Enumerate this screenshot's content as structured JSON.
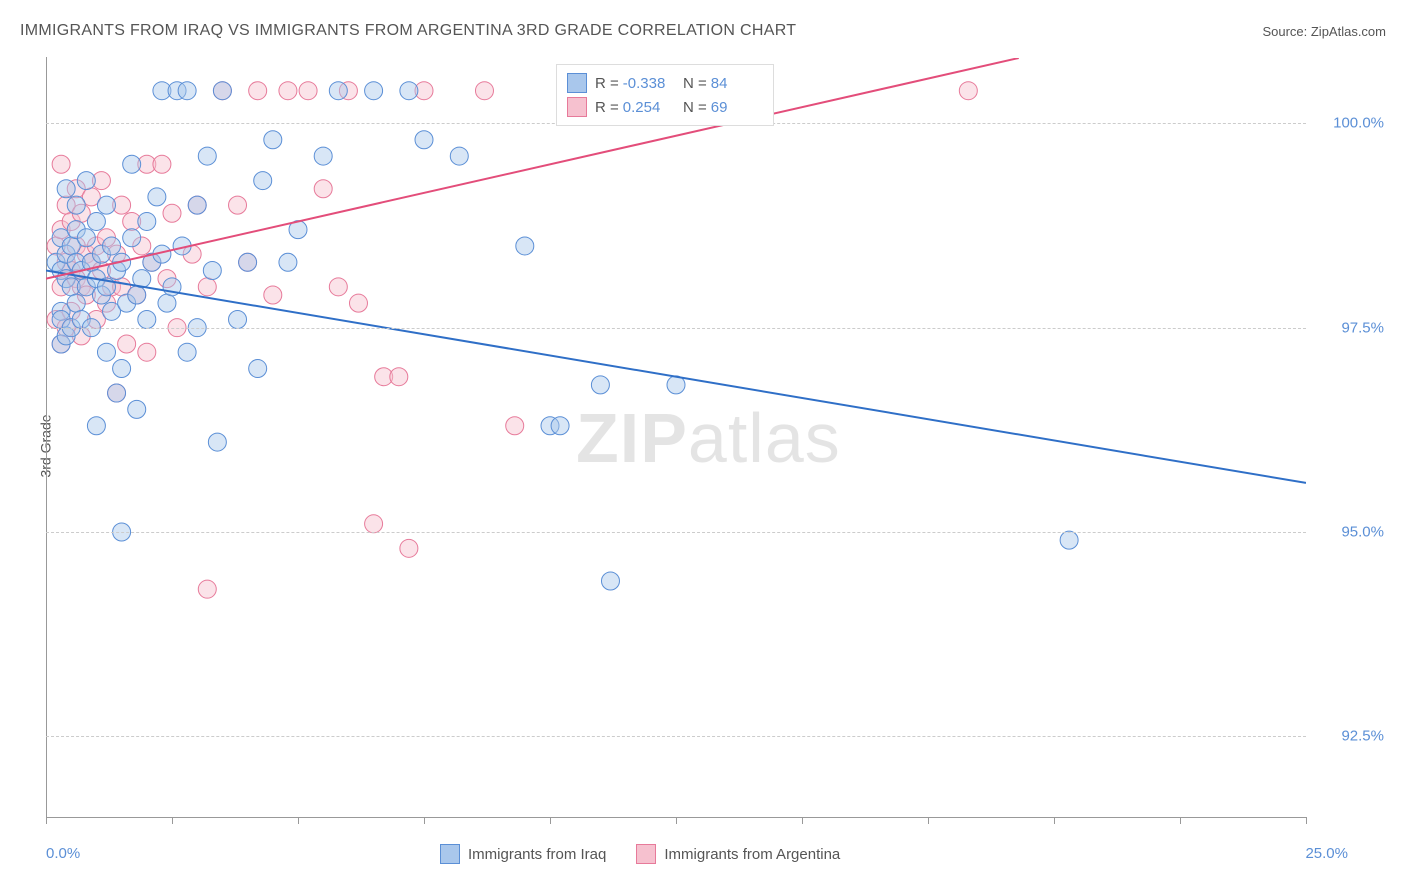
{
  "title": "IMMIGRANTS FROM IRAQ VS IMMIGRANTS FROM ARGENTINA 3RD GRADE CORRELATION CHART",
  "source_label": "Source: ",
  "source_name": "ZipAtlas.com",
  "ylabel": "3rd Grade",
  "watermark_a": "ZIP",
  "watermark_b": "atlas",
  "chart": {
    "type": "scatter",
    "xlim": [
      0,
      25
    ],
    "ylim": [
      91.5,
      100.8
    ],
    "x_ticks": [
      0,
      2.5,
      5,
      7.5,
      10,
      12.5,
      15,
      17.5,
      20,
      22.5,
      25
    ],
    "x_tick_labels": {
      "0": "0.0%",
      "25": "25.0%"
    },
    "y_gridlines": [
      92.5,
      95.0,
      97.5,
      100.0
    ],
    "y_tick_labels": [
      "92.5%",
      "95.0%",
      "97.5%",
      "100.0%"
    ],
    "background_color": "#ffffff",
    "grid_color": "#cccccc",
    "marker_radius": 9,
    "marker_opacity": 0.45,
    "line_width": 2,
    "series": [
      {
        "name": "Immigrants from Iraq",
        "color_fill": "#a9c7ec",
        "color_stroke": "#5b8fd6",
        "line_color": "#2f6fc7",
        "R": "-0.338",
        "N": "84",
        "trend": {
          "x1": 0,
          "y1": 98.2,
          "x2": 25,
          "y2": 95.6
        },
        "points": [
          [
            0.2,
            98.3
          ],
          [
            0.3,
            97.7
          ],
          [
            0.3,
            98.6
          ],
          [
            0.3,
            97.6
          ],
          [
            0.3,
            97.3
          ],
          [
            0.3,
            98.2
          ],
          [
            0.4,
            98.4
          ],
          [
            0.4,
            97.4
          ],
          [
            0.4,
            98.1
          ],
          [
            0.4,
            99.2
          ],
          [
            0.5,
            98.0
          ],
          [
            0.5,
            97.5
          ],
          [
            0.5,
            98.5
          ],
          [
            0.6,
            98.3
          ],
          [
            0.6,
            97.8
          ],
          [
            0.6,
            98.7
          ],
          [
            0.6,
            99.0
          ],
          [
            0.7,
            98.2
          ],
          [
            0.7,
            97.6
          ],
          [
            0.8,
            98.0
          ],
          [
            0.8,
            98.6
          ],
          [
            0.8,
            99.3
          ],
          [
            0.9,
            98.3
          ],
          [
            0.9,
            97.5
          ],
          [
            1.0,
            98.1
          ],
          [
            1.0,
            98.8
          ],
          [
            1.0,
            96.3
          ],
          [
            1.1,
            97.9
          ],
          [
            1.1,
            98.4
          ],
          [
            1.2,
            99.0
          ],
          [
            1.2,
            98.0
          ],
          [
            1.2,
            97.2
          ],
          [
            1.3,
            98.5
          ],
          [
            1.3,
            97.7
          ],
          [
            1.4,
            98.2
          ],
          [
            1.4,
            96.7
          ],
          [
            1.5,
            97.0
          ],
          [
            1.5,
            98.3
          ],
          [
            1.5,
            95.0
          ],
          [
            1.6,
            97.8
          ],
          [
            1.7,
            99.5
          ],
          [
            1.7,
            98.6
          ],
          [
            1.8,
            97.9
          ],
          [
            1.8,
            96.5
          ],
          [
            1.9,
            98.1
          ],
          [
            2.0,
            97.6
          ],
          [
            2.0,
            98.8
          ],
          [
            2.1,
            98.3
          ],
          [
            2.2,
            99.1
          ],
          [
            2.3,
            100.4
          ],
          [
            2.3,
            98.4
          ],
          [
            2.4,
            97.8
          ],
          [
            2.5,
            98.0
          ],
          [
            2.6,
            100.4
          ],
          [
            2.7,
            98.5
          ],
          [
            2.8,
            100.4
          ],
          [
            2.8,
            97.2
          ],
          [
            3.0,
            97.5
          ],
          [
            3.0,
            99.0
          ],
          [
            3.2,
            99.6
          ],
          [
            3.3,
            98.2
          ],
          [
            3.4,
            96.1
          ],
          [
            3.5,
            100.4
          ],
          [
            3.8,
            97.6
          ],
          [
            4.0,
            98.3
          ],
          [
            4.2,
            97.0
          ],
          [
            4.3,
            99.3
          ],
          [
            4.5,
            99.8
          ],
          [
            4.8,
            98.3
          ],
          [
            5.0,
            98.7
          ],
          [
            5.5,
            99.6
          ],
          [
            5.8,
            100.4
          ],
          [
            6.5,
            100.4
          ],
          [
            7.2,
            100.4
          ],
          [
            7.5,
            99.8
          ],
          [
            8.2,
            99.6
          ],
          [
            9.5,
            98.5
          ],
          [
            10.0,
            96.3
          ],
          [
            10.2,
            96.3
          ],
          [
            11.0,
            96.8
          ],
          [
            11.2,
            94.4
          ],
          [
            12.5,
            96.8
          ],
          [
            13.2,
            100.4
          ],
          [
            20.3,
            94.9
          ]
        ]
      },
      {
        "name": "Immigrants from Argentina",
        "color_fill": "#f6c1cf",
        "color_stroke": "#e77a9a",
        "line_color": "#e34d7a",
        "R": "0.254",
        "N": "69",
        "trend": {
          "x1": 0,
          "y1": 98.1,
          "x2": 19.3,
          "y2": 100.8
        },
        "points": [
          [
            0.2,
            97.6
          ],
          [
            0.2,
            98.5
          ],
          [
            0.3,
            99.5
          ],
          [
            0.3,
            98.0
          ],
          [
            0.3,
            97.3
          ],
          [
            0.3,
            98.7
          ],
          [
            0.4,
            98.3
          ],
          [
            0.4,
            99.0
          ],
          [
            0.4,
            97.5
          ],
          [
            0.5,
            98.2
          ],
          [
            0.5,
            98.8
          ],
          [
            0.5,
            97.7
          ],
          [
            0.6,
            98.1
          ],
          [
            0.6,
            99.2
          ],
          [
            0.6,
            98.5
          ],
          [
            0.7,
            98.0
          ],
          [
            0.7,
            98.9
          ],
          [
            0.7,
            97.4
          ],
          [
            0.8,
            98.4
          ],
          [
            0.8,
            97.9
          ],
          [
            0.9,
            98.3
          ],
          [
            0.9,
            99.1
          ],
          [
            1.0,
            98.5
          ],
          [
            1.0,
            97.6
          ],
          [
            1.1,
            98.2
          ],
          [
            1.1,
            99.3
          ],
          [
            1.2,
            98.6
          ],
          [
            1.2,
            97.8
          ],
          [
            1.3,
            98.0
          ],
          [
            1.4,
            98.4
          ],
          [
            1.4,
            96.7
          ],
          [
            1.5,
            98.0
          ],
          [
            1.5,
            99.0
          ],
          [
            1.6,
            97.3
          ],
          [
            1.7,
            98.8
          ],
          [
            1.8,
            97.9
          ],
          [
            1.9,
            98.5
          ],
          [
            2.0,
            97.2
          ],
          [
            2.0,
            99.5
          ],
          [
            2.1,
            98.3
          ],
          [
            2.3,
            99.5
          ],
          [
            2.4,
            98.1
          ],
          [
            2.5,
            98.9
          ],
          [
            2.6,
            97.5
          ],
          [
            2.9,
            98.4
          ],
          [
            3.0,
            99.0
          ],
          [
            3.2,
            94.3
          ],
          [
            3.2,
            98.0
          ],
          [
            3.5,
            100.4
          ],
          [
            3.8,
            99.0
          ],
          [
            4.0,
            98.3
          ],
          [
            4.2,
            100.4
          ],
          [
            4.5,
            97.9
          ],
          [
            4.8,
            100.4
          ],
          [
            5.2,
            100.4
          ],
          [
            5.5,
            99.2
          ],
          [
            5.8,
            98.0
          ],
          [
            6.0,
            100.4
          ],
          [
            6.2,
            97.8
          ],
          [
            6.5,
            95.1
          ],
          [
            6.7,
            96.9
          ],
          [
            7.0,
            96.9
          ],
          [
            7.2,
            94.8
          ],
          [
            7.5,
            100.4
          ],
          [
            8.7,
            100.4
          ],
          [
            9.3,
            96.3
          ],
          [
            13.5,
            100.4
          ],
          [
            14.2,
            100.4
          ],
          [
            18.3,
            100.4
          ]
        ]
      }
    ]
  },
  "legend_stats_labels": {
    "R": "R =",
    "N": "N ="
  },
  "bottom_legend": [
    "Immigrants from Iraq",
    "Immigrants from Argentina"
  ]
}
